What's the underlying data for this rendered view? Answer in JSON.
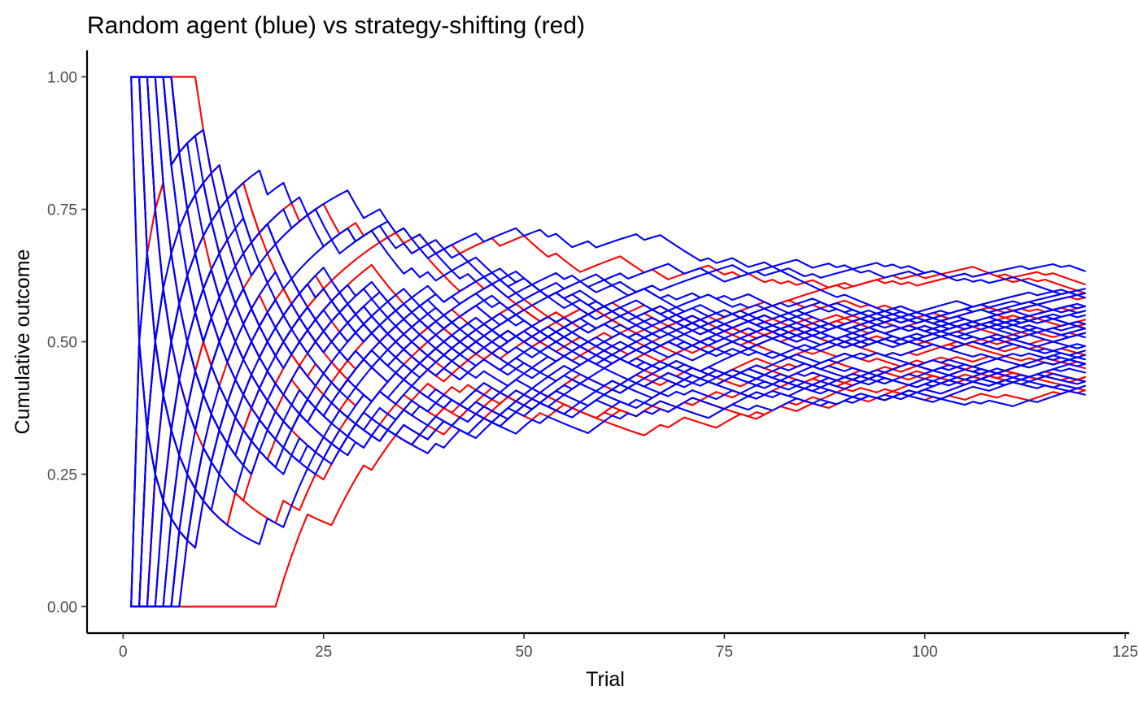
{
  "chart_data": {
    "type": "line",
    "title": "Random agent (blue) vs strategy-shifting (red)",
    "xlabel": "Trial",
    "ylabel": "Cumulative outcome",
    "xlim": [
      -4.5,
      125.5
    ],
    "ylim": [
      -0.05,
      1.05
    ],
    "x_ticks": [
      {
        "value": 0,
        "label": "0"
      },
      {
        "value": 25,
        "label": "25"
      },
      {
        "value": 50,
        "label": "50"
      },
      {
        "value": 75,
        "label": "75"
      },
      {
        "value": 100,
        "label": "100"
      },
      {
        "value": 125,
        "label": "125"
      }
    ],
    "y_ticks": [
      {
        "value": 0,
        "label": "0.00"
      },
      {
        "value": 0.25,
        "label": "0.25"
      },
      {
        "value": 0.5,
        "label": "0.50"
      },
      {
        "value": 0.75,
        "label": "0.75"
      },
      {
        "value": 1,
        "label": "1.00"
      }
    ],
    "grid": false,
    "legend": "none",
    "colors": {
      "random_agent": "#0000ff",
      "strategy_shifting": "#ff0000"
    },
    "x_range": [
      1,
      120
    ],
    "series_groups": [
      {
        "group": "strategy_shifting",
        "color": "#ff0000",
        "series": [
          {
            "start": 1,
            "end": 0.61
          },
          {
            "start": 1,
            "end": 0.596
          },
          {
            "start": 1,
            "end": 0.587
          },
          {
            "start": 1,
            "end": 0.579
          },
          {
            "start": 1,
            "end": 0.571
          },
          {
            "start": 1,
            "end": 0.562
          },
          {
            "start": 1,
            "end": 0.553
          },
          {
            "start": 1,
            "end": 0.545
          },
          {
            "start": 0,
            "end": 0.461
          },
          {
            "start": 0,
            "end": 0.452
          },
          {
            "start": 0,
            "end": 0.444
          },
          {
            "start": 0,
            "end": 0.432
          },
          {
            "start": 0,
            "end": 0.421
          },
          {
            "start": 0,
            "end": 0.41
          },
          {
            "start": 0,
            "end": 0.402
          },
          {
            "start": 0,
            "end": 0.391
          },
          {
            "start": 0,
            "end": 0.382
          }
        ]
      },
      {
        "group": "random_agent",
        "color": "#0000ff",
        "series": [
          {
            "start": 1,
            "end": 0.616
          },
          {
            "start": 1,
            "end": 0.607
          },
          {
            "start": 1,
            "end": 0.598
          },
          {
            "start": 1,
            "end": 0.59
          },
          {
            "start": 1,
            "end": 0.583
          },
          {
            "start": 1,
            "end": 0.576
          },
          {
            "start": 1,
            "end": 0.568
          },
          {
            "start": 1,
            "end": 0.561
          },
          {
            "start": 1,
            "end": 0.554
          },
          {
            "start": 1,
            "end": 0.547
          },
          {
            "start": 1,
            "end": 0.54
          },
          {
            "start": 1,
            "end": 0.533
          },
          {
            "start": 1,
            "end": 0.526
          },
          {
            "start": 1,
            "end": 0.52
          },
          {
            "start": 1,
            "end": 0.514
          },
          {
            "start": 1,
            "end": 0.508
          },
          {
            "start": 0,
            "end": 0.502
          },
          {
            "start": 0,
            "end": 0.496
          },
          {
            "start": 0,
            "end": 0.49
          },
          {
            "start": 0,
            "end": 0.484
          },
          {
            "start": 0,
            "end": 0.478
          },
          {
            "start": 0,
            "end": 0.472
          },
          {
            "start": 0,
            "end": 0.466
          },
          {
            "start": 0,
            "end": 0.459
          },
          {
            "start": 0,
            "end": 0.452
          },
          {
            "start": 0,
            "end": 0.445
          },
          {
            "start": 0,
            "end": 0.438
          },
          {
            "start": 0,
            "end": 0.431
          },
          {
            "start": 0,
            "end": 0.423
          },
          {
            "start": 0,
            "end": 0.414
          },
          {
            "start": 0,
            "end": 0.405
          },
          {
            "start": 0,
            "end": 0.396
          }
        ]
      }
    ]
  }
}
